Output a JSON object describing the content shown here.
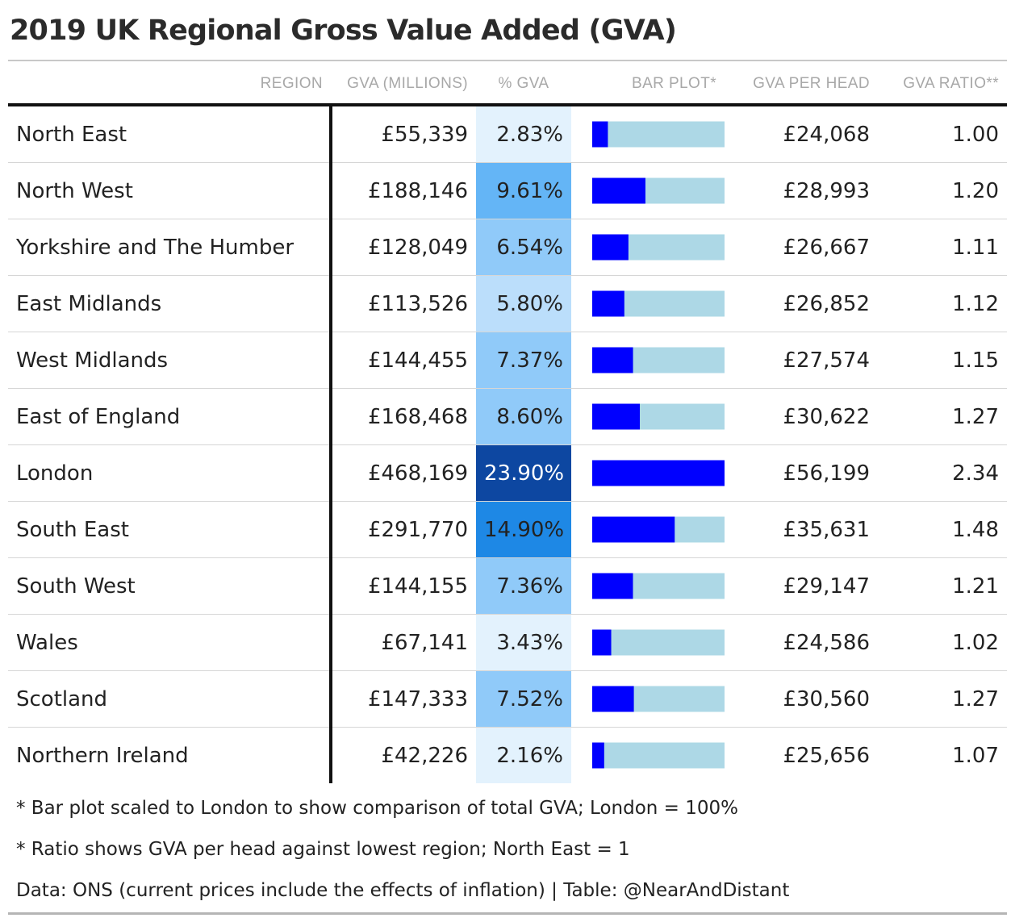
{
  "title": "2019 UK Regional Gross Value Added (GVA)",
  "columns": {
    "region": "REGION",
    "gva": "GVA (MILLIONS)",
    "pct": "% GVA",
    "bar": "BAR PLOT*",
    "head": "GVA PER HEAD",
    "ratio": "GVA RATIO**"
  },
  "colors": {
    "bar_fill": "#0000ff",
    "bar_track": "#add8e6",
    "pct_scale": [
      "#e3f2fd",
      "#bbdefb",
      "#90caf9",
      "#64b5f6",
      "#1e88e5",
      "#0d47a1"
    ],
    "text_dark": "#222222",
    "text_light": "#ffffff"
  },
  "chart_data": {
    "type": "table",
    "title": "2019 UK Regional Gross Value Added (GVA)",
    "bar_scale_max": 23.9,
    "rows": [
      {
        "region": "North East",
        "gva": "£55,339",
        "pct": "2.83%",
        "pct_value": 2.83,
        "head": "£24,068",
        "ratio": "1.00"
      },
      {
        "region": "North West",
        "gva": "£188,146",
        "pct": "9.61%",
        "pct_value": 9.61,
        "head": "£28,993",
        "ratio": "1.20"
      },
      {
        "region": "Yorkshire and The Humber",
        "gva": "£128,049",
        "pct": "6.54%",
        "pct_value": 6.54,
        "head": "£26,667",
        "ratio": "1.11"
      },
      {
        "region": "East Midlands",
        "gva": "£113,526",
        "pct": "5.80%",
        "pct_value": 5.8,
        "head": "£26,852",
        "ratio": "1.12"
      },
      {
        "region": "West Midlands",
        "gva": "£144,455",
        "pct": "7.37%",
        "pct_value": 7.37,
        "head": "£27,574",
        "ratio": "1.15"
      },
      {
        "region": "East of England",
        "gva": "£168,468",
        "pct": "8.60%",
        "pct_value": 8.6,
        "head": "£30,622",
        "ratio": "1.27"
      },
      {
        "region": "London",
        "gva": "£468,169",
        "pct": "23.90%",
        "pct_value": 23.9,
        "head": "£56,199",
        "ratio": "2.34"
      },
      {
        "region": "South East",
        "gva": "£291,770",
        "pct": "14.90%",
        "pct_value": 14.9,
        "head": "£35,631",
        "ratio": "1.48"
      },
      {
        "region": "South West",
        "gva": "£144,155",
        "pct": "7.36%",
        "pct_value": 7.36,
        "head": "£29,147",
        "ratio": "1.21"
      },
      {
        "region": "Wales",
        "gva": "£67,141",
        "pct": "3.43%",
        "pct_value": 3.43,
        "head": "£24,586",
        "ratio": "1.02"
      },
      {
        "region": "Scotland",
        "gva": "£147,333",
        "pct": "7.52%",
        "pct_value": 7.52,
        "head": "£30,560",
        "ratio": "1.27"
      },
      {
        "region": "Northern Ireland",
        "gva": "£42,226",
        "pct": "2.16%",
        "pct_value": 2.16,
        "head": "£25,656",
        "ratio": "1.07"
      }
    ]
  },
  "notes": [
    "* Bar plot scaled to London to show comparison of total GVA; London = 100%",
    "* Ratio shows GVA per head against lowest region; North East = 1",
    "Data: ONS (current prices include the effects of inflation) | Table: @NearAndDistant"
  ]
}
